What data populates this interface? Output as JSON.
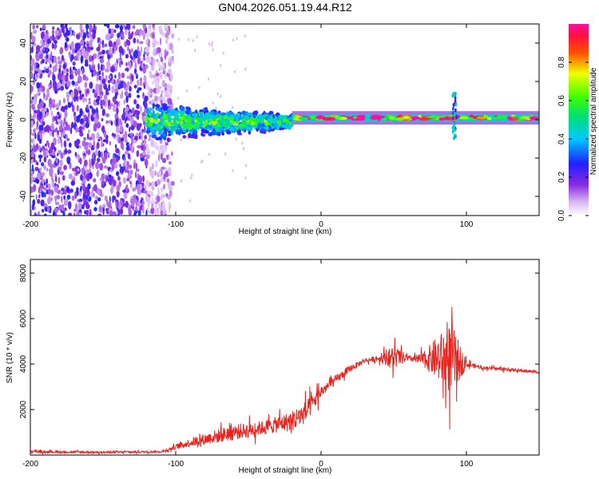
{
  "title": "GN04.2026.051.19.44.R12",
  "chart_data": [
    {
      "type": "heatmap",
      "name": "spectrogram",
      "xlabel": "Height of straight line (km)",
      "ylabel": "Frequency (Hz)",
      "xlim": [
        -200,
        150
      ],
      "ylim": [
        -50,
        50
      ],
      "xticks": [
        -200,
        -100,
        0,
        100
      ],
      "xtick_labels": [
        "-200",
        "-100",
        "0",
        "100"
      ],
      "yticks": [
        -40,
        -20,
        0,
        20,
        40
      ],
      "ytick_labels": [
        "-40",
        "-20",
        "0",
        "20",
        "40"
      ],
      "colorbar": {
        "label": "Normalized spectral amplitude",
        "range": [
          0,
          1
        ],
        "ticks": [
          0,
          0.2,
          0.4,
          0.6,
          0.8
        ],
        "tick_labels": [
          "0.0",
          "0.2",
          "0.4",
          "0.6",
          "0.8"
        ],
        "colormap": "rainbow (violet-blue-cyan-green-yellow-red-magenta)"
      },
      "features": [
        {
          "description": "broadband noise",
          "x_range": [
            -200,
            -110
          ],
          "freq_range": [
            -50,
            50
          ],
          "amplitude": 0.15
        },
        {
          "description": "widening band",
          "x_range": [
            -120,
            -20
          ],
          "freq_range": [
            -12,
            8
          ],
          "amplitude": 0.45
        },
        {
          "description": "narrow tone",
          "x_range": [
            -20,
            150
          ],
          "freq_center": 1,
          "freq_halfwidth": 2,
          "amplitude": 0.8
        },
        {
          "description": "spike",
          "x": 92,
          "freq_range": [
            -12,
            15
          ],
          "amplitude": 0.3
        }
      ]
    },
    {
      "type": "line",
      "name": "snr",
      "xlabel": "Height of straight line (km)",
      "ylabel": "SNR (10 * v/v)",
      "xlim": [
        -200,
        150
      ],
      "ylim": [
        0,
        8600
      ],
      "xticks": [
        -200,
        -100,
        0,
        100
      ],
      "xtick_labels": [
        "-200",
        "-100",
        "0",
        "100"
      ],
      "yticks": [
        2000,
        4000,
        6000,
        8000
      ],
      "ytick_labels": [
        "2000",
        "4000",
        "6000",
        "8000"
      ],
      "color": "#e8231e",
      "series": [
        {
          "name": "SNR envelope",
          "x": [
            -200,
            -150,
            -110,
            -100,
            -90,
            -80,
            -70,
            -60,
            -50,
            -40,
            -30,
            -20,
            -10,
            0,
            10,
            20,
            30,
            40,
            50,
            60,
            70,
            80,
            90,
            100,
            110,
            120,
            130,
            140,
            150
          ],
          "y": [
            150,
            120,
            150,
            350,
            550,
            700,
            850,
            1000,
            1100,
            1200,
            1350,
            1500,
            1900,
            2800,
            3300,
            3800,
            4150,
            4250,
            4300,
            4250,
            4200,
            4250,
            4200,
            4000,
            3850,
            3800,
            3750,
            3700,
            3650
          ],
          "noise": [
            120,
            100,
            100,
            250,
            400,
            550,
            700,
            800,
            700,
            700,
            800,
            1000,
            1100,
            600,
            450,
            350,
            200,
            300,
            1200,
            250,
            600,
            2200,
            3500,
            300,
            150,
            150,
            150,
            150,
            150
          ]
        }
      ]
    }
  ]
}
